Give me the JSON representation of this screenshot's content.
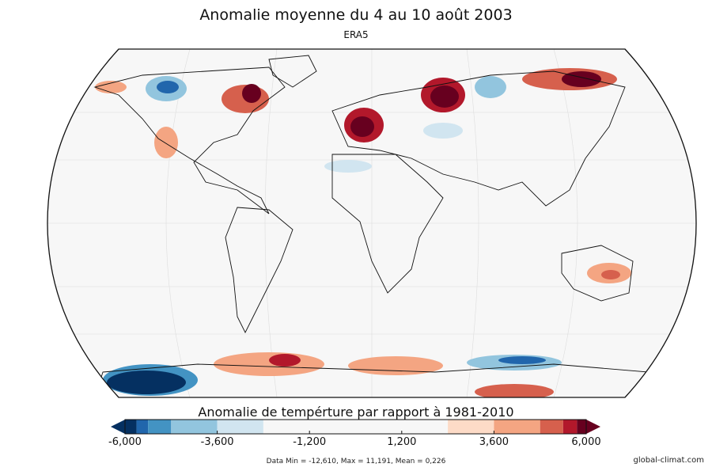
{
  "title": "Anomalie moyenne du 4 au 10 août 2003",
  "subtitle": "ERA5",
  "colorbar": {
    "title": "Anomalie de tempérture par rapport à 1981-2010",
    "min": -6000,
    "max": 6000,
    "ticks": [
      "-6,000",
      "-3,600",
      "-1,200",
      "1,200",
      "3,600",
      "6,000"
    ],
    "tick_values": [
      -6000,
      -3600,
      -1200,
      1200,
      3600,
      6000
    ],
    "bins": [
      {
        "from": -6000,
        "to": -5700,
        "color": "#053061"
      },
      {
        "from": -5700,
        "to": -5400,
        "color": "#2166ac"
      },
      {
        "from": -5400,
        "to": -4800,
        "color": "#4393c3"
      },
      {
        "from": -4800,
        "to": -3600,
        "color": "#92c5de"
      },
      {
        "from": -3600,
        "to": -2400,
        "color": "#d1e5f0"
      },
      {
        "from": -2400,
        "to": 2400,
        "color": "#f7f7f7"
      },
      {
        "from": 2400,
        "to": 3600,
        "color": "#fddbc7"
      },
      {
        "from": 3600,
        "to": 4800,
        "color": "#f4a582"
      },
      {
        "from": 4800,
        "to": 5400,
        "color": "#d6604d"
      },
      {
        "from": 5400,
        "to": 5760,
        "color": "#b2182b"
      },
      {
        "from": 5760,
        "to": 6000,
        "color": "#67001f"
      }
    ],
    "under_color": "#053061",
    "over_color": "#67001f"
  },
  "stats": "Data Min = -12,610, Max = 11,191, Mean = 0,226",
  "credit": "global-climat.com"
}
